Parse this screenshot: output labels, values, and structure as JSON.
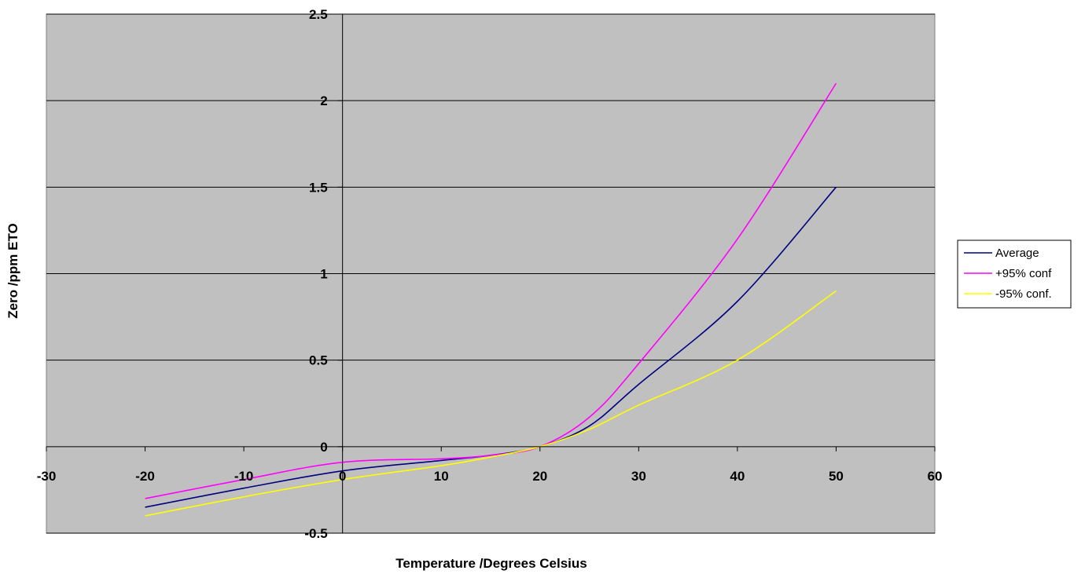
{
  "chart_data": {
    "type": "line",
    "title": "",
    "xlabel": "Temperature /Degrees Celsius",
    "ylabel": "Zero /ppm ETO",
    "xlim": [
      -30,
      60
    ],
    "ylim": [
      -0.5,
      2.5
    ],
    "xticks": [
      -30,
      -20,
      -10,
      0,
      10,
      20,
      30,
      40,
      50,
      60
    ],
    "yticks": [
      -0.5,
      0,
      0.5,
      1,
      1.5,
      2,
      2.5
    ],
    "xtick_labels": [
      "-30",
      "-20",
      "-10",
      "0",
      "10",
      "20",
      "30",
      "40",
      "50",
      "60"
    ],
    "ytick_labels": [
      "-0.5",
      "0",
      "0.5",
      "1",
      "1.5",
      "2",
      "2.5"
    ],
    "grid": "horizontal",
    "legend_position": "right",
    "plot_background": "#c0c0c0",
    "series": [
      {
        "name": "Average",
        "color": "#000080",
        "x": [
          -20,
          -10,
          0,
          10,
          15,
          20,
          25,
          30,
          40,
          50
        ],
        "y": [
          -0.35,
          -0.24,
          -0.14,
          -0.08,
          -0.05,
          0.0,
          0.12,
          0.36,
          0.84,
          1.5
        ]
      },
      {
        "name": "+95% conf",
        "color": "#ff00ff",
        "x": [
          -20,
          -10,
          0,
          10,
          15,
          20,
          25,
          30,
          40,
          50
        ],
        "y": [
          -0.3,
          -0.19,
          -0.09,
          -0.07,
          -0.05,
          0.0,
          0.17,
          0.48,
          1.2,
          2.1
        ]
      },
      {
        "name": "-95% conf.",
        "color": "#ffff00",
        "x": [
          -20,
          -10,
          0,
          10,
          15,
          20,
          25,
          30,
          40,
          50
        ],
        "y": [
          -0.4,
          -0.29,
          -0.19,
          -0.11,
          -0.06,
          0.0,
          0.1,
          0.24,
          0.5,
          0.9
        ]
      }
    ]
  }
}
